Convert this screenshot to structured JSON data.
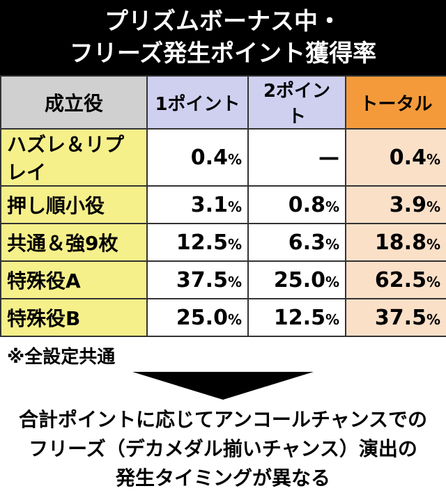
{
  "header": {
    "title": [
      "プリズムボーナス中・",
      "フリーズ発生ポイント獲得率"
    ]
  },
  "table": {
    "columns": [
      "成立役",
      "1ポイント",
      "2ポイント",
      "トータル"
    ],
    "rows": [
      [
        "ハズレ＆リプレイ",
        {
          "value": "0.4",
          "unit": "%"
        },
        {
          "value": "—"
        },
        {
          "value": "0.4",
          "unit": "%"
        }
      ],
      [
        "押し順小役",
        {
          "value": "3.1",
          "unit": "%"
        },
        {
          "value": "0.8",
          "unit": "%"
        },
        {
          "value": "3.9",
          "unit": "%"
        }
      ],
      [
        "共通＆強9枚",
        {
          "value": "12.5",
          "unit": "%"
        },
        {
          "value": "6.3",
          "unit": "%"
        },
        {
          "value": "18.8",
          "unit": "%"
        }
      ],
      [
        "特殊役A",
        {
          "value": "37.5",
          "unit": "%"
        },
        {
          "value": "25.0",
          "unit": "%"
        },
        {
          "value": "62.5",
          "unit": "%"
        }
      ],
      [
        "特殊役B",
        {
          "value": "25.0",
          "unit": "%"
        },
        {
          "value": "12.5",
          "unit": "%"
        },
        {
          "value": "37.5",
          "unit": "%"
        }
      ]
    ]
  },
  "note": "※全設定共通",
  "footer": [
    "合計ポイントに応じてアンコールチャンスでの",
    "フリーズ（デカメダル揃いチャンス）演出の",
    "発生タイミングが異なる"
  ]
}
